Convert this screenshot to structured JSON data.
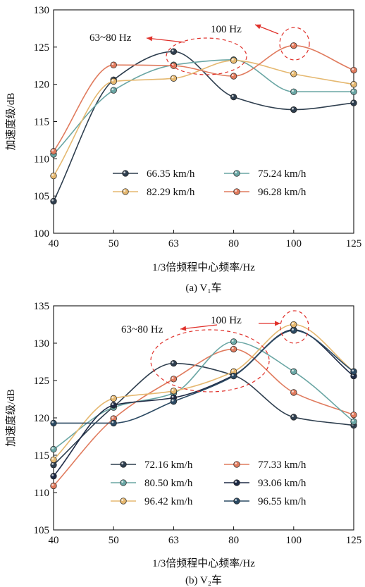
{
  "chart_data": [
    {
      "type": "line",
      "caption": "(a) V₁车",
      "xlabel": "1/3倍频程中心频率/Hz",
      "ylabel": "加速度级/dB",
      "categories": [
        "40",
        "50",
        "63",
        "80",
        "100",
        "125"
      ],
      "ylim": [
        100,
        130
      ],
      "yticks": [
        "100",
        "105",
        "110",
        "115",
        "120",
        "125",
        "130"
      ],
      "legend_position": "lower-center",
      "series": [
        {
          "name": "66.35 km/h",
          "color": "#2f3f4f",
          "values": [
            104.3,
            120.6,
            124.4,
            118.3,
            116.6,
            117.5
          ]
        },
        {
          "name": "75.24 km/h",
          "color": "#6aa6a4",
          "values": [
            110.6,
            119.2,
            122.6,
            123.3,
            119.0,
            119.0
          ]
        },
        {
          "name": "82.29 km/h",
          "color": "#e5b870",
          "values": [
            107.7,
            120.4,
            120.8,
            123.2,
            121.4,
            120.0
          ]
        },
        {
          "name": "96.28 km/h",
          "color": "#e07b5e",
          "values": [
            111.0,
            122.6,
            122.5,
            121.1,
            125.2,
            121.9
          ]
        }
      ],
      "annotations": [
        {
          "text": "63~80 Hz",
          "kind": "dashed-ellipse"
        },
        {
          "text": "100 Hz",
          "kind": "dashed-ellipse"
        }
      ]
    },
    {
      "type": "line",
      "caption": "(b) V₂车",
      "xlabel": "1/3倍频程中心频率/Hz",
      "ylabel": "加速度级/dB",
      "categories": [
        "40",
        "50",
        "63",
        "80",
        "100",
        "125"
      ],
      "ylim": [
        105,
        135
      ],
      "yticks": [
        "105",
        "110",
        "115",
        "120",
        "125",
        "130",
        "135"
      ],
      "legend_position": "lower-center",
      "series": [
        {
          "name": "72.16 km/h",
          "color": "#2f3f4f",
          "values": [
            113.7,
            121.5,
            127.3,
            125.7,
            120.1,
            119.0
          ]
        },
        {
          "name": "77.33 km/h",
          "color": "#e07b5e",
          "values": [
            110.9,
            119.9,
            125.2,
            129.2,
            123.4,
            120.4
          ]
        },
        {
          "name": "80.50 km/h",
          "color": "#6aa6a4",
          "values": [
            115.8,
            121.4,
            123.3,
            130.2,
            126.2,
            119.5
          ]
        },
        {
          "name": "93.06 km/h",
          "color": "#1e2a45",
          "values": [
            112.2,
            121.7,
            122.7,
            125.7,
            131.8,
            125.6
          ]
        },
        {
          "name": "96.42 km/h",
          "color": "#e5b870",
          "values": [
            114.4,
            122.6,
            123.6,
            126.2,
            132.5,
            126.2
          ]
        },
        {
          "name": "96.55 km/h",
          "color": "#2c4a63",
          "values": [
            119.3,
            119.3,
            122.2,
            125.6,
            131.7,
            126.2
          ]
        }
      ],
      "annotations": [
        {
          "text": "63~80 Hz",
          "kind": "dashed-ellipse"
        },
        {
          "text": "100 Hz",
          "kind": "dashed-ellipse"
        }
      ]
    }
  ]
}
